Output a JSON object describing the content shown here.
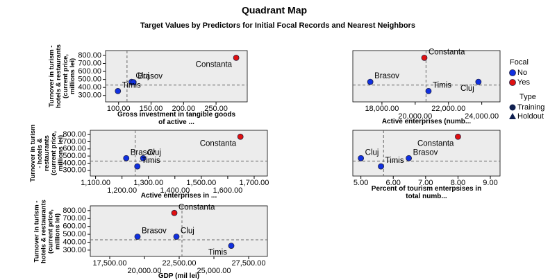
{
  "title": "Quadrant Map",
  "subtitle": "Target Values by Predictors for Initial Focal Records and Nearest Neighbors",
  "legend": {
    "title": "Focal",
    "items": [
      {
        "name": "No",
        "color": "#1030e0"
      },
      {
        "name": "Yes",
        "color": "#e01010"
      }
    ]
  },
  "type_legend": {
    "title": "Type",
    "items": [
      {
        "name": "Training",
        "shape": "circle"
      },
      {
        "name": "Holdout",
        "shape": "triangle"
      }
    ]
  },
  "chart_data": [
    {
      "type": "scatter",
      "xlabel": "Gross investment in tangible goods of active ...",
      "ylabel": "Turnover in turism - hotels & restaurants (current price, millions lei)",
      "labels": [
        "Constanta",
        "Cluj",
        "Brasov",
        "Timis"
      ],
      "focal": [
        "Yes",
        "No",
        "No",
        "No"
      ],
      "x": [
        281,
        120,
        123,
        99
      ],
      "values": [
        770,
        470,
        465,
        355
      ],
      "ref_x": 113,
      "ref_y": 430,
      "xlim": [
        80,
        298
      ],
      "ylim": [
        220,
        860
      ],
      "xticks": [
        {
          "value": 100,
          "label": "100.00"
        },
        {
          "value": 150,
          "label": "150.00"
        },
        {
          "value": 200,
          "label": "200.00"
        },
        {
          "value": 250,
          "label": "250.00"
        }
      ],
      "yticks": [
        {
          "value": 300,
          "label": "300.00"
        },
        {
          "value": 400,
          "label": "400.00"
        },
        {
          "value": 500,
          "label": "500.00"
        },
        {
          "value": 600,
          "label": "600.00"
        },
        {
          "value": 700,
          "label": "700.00"
        },
        {
          "value": 800,
          "label": "800.00"
        }
      ]
    },
    {
      "type": "scatter",
      "xlabel": "Active enterprises (numb...",
      "labels": [
        "Constanta",
        "Brasov",
        "Cluj",
        "Timis"
      ],
      "focal": [
        "Yes",
        "No",
        "No",
        "No"
      ],
      "x": [
        20550,
        17300,
        23800,
        20800
      ],
      "values": [
        770,
        470,
        470,
        355
      ],
      "ref_x": 20650,
      "ref_y": 430,
      "xlim": [
        16250,
        25100
      ],
      "ylim": [
        220,
        860
      ],
      "xticks": [
        {
          "value": 18000,
          "label": "18,000.00"
        },
        {
          "value": 20000,
          "label": "20,000.00"
        },
        {
          "value": 22000,
          "label": "22,000.00"
        },
        {
          "value": 24000,
          "label": "24,000.00"
        }
      ]
    },
    {
      "type": "scatter",
      "xlabel": "Active enterprises in ...",
      "ylabel": "Turnover in turism - hotels & restaurants (current price, millions lei)",
      "labels": [
        "Constanta",
        "Brasov",
        "Cluj",
        "Timis"
      ],
      "focal": [
        "Yes",
        "No",
        "No",
        "No"
      ],
      "x": [
        1648,
        1216,
        1280,
        1258
      ],
      "values": [
        770,
        470,
        470,
        355
      ],
      "ref_x": 1250,
      "ref_y": 430,
      "xlim": [
        1080,
        1750
      ],
      "ylim": [
        220,
        860
      ],
      "xticks": [
        {
          "value": 1100,
          "label": "1,100.00"
        },
        {
          "value": 1200,
          "label": "1,200.00"
        },
        {
          "value": 1300,
          "label": "1,300.00"
        },
        {
          "value": 1400,
          "label": "1,400.00"
        },
        {
          "value": 1500,
          "label": "1,500.00"
        },
        {
          "value": 1600,
          "label": "1,600.00"
        },
        {
          "value": 1700,
          "label": "1,700.00"
        }
      ],
      "yticks": [
        {
          "value": 300,
          "label": "300.00"
        },
        {
          "value": 400,
          "label": "400.00"
        },
        {
          "value": 500,
          "label": "500.00"
        },
        {
          "value": 600,
          "label": "600.00"
        },
        {
          "value": 700,
          "label": "700.00"
        },
        {
          "value": 800,
          "label": "800.00"
        }
      ]
    },
    {
      "type": "scatter",
      "xlabel": "Percent of tourism enterpsises in total numb...",
      "labels": [
        "Constanta",
        "Cluj",
        "Brasov",
        "Timis"
      ],
      "focal": [
        "Yes",
        "No",
        "No",
        "No"
      ],
      "x": [
        8.0,
        5.0,
        6.48,
        5.62
      ],
      "values": [
        770,
        470,
        470,
        355
      ],
      "ref_x": 5.7,
      "ref_y": 430,
      "xlim": [
        4.75,
        9.3
      ],
      "ylim": [
        220,
        860
      ],
      "xticks": [
        {
          "value": 5,
          "label": "5.00"
        },
        {
          "value": 6,
          "label": "6.00"
        },
        {
          "value": 7,
          "label": "7.00"
        },
        {
          "value": 8,
          "label": "8.00"
        },
        {
          "value": 9,
          "label": "9.00"
        }
      ]
    },
    {
      "type": "scatter",
      "xlabel": "GDP (mil lei)",
      "ylabel": "Turnover in turism - hotels & restaurants (current price, millions lei)",
      "labels": [
        "Constanta",
        "Brasov",
        "Cluj",
        "Timis"
      ],
      "focal": [
        "Yes",
        "No",
        "No",
        "No"
      ],
      "x": [
        22150,
        19500,
        22300,
        26250
      ],
      "values": [
        770,
        470,
        470,
        355
      ],
      "ref_x": 22700,
      "ref_y": 430,
      "xlim": [
        16100,
        28850
      ],
      "ylim": [
        220,
        860
      ],
      "xticks": [
        {
          "value": 17500,
          "label": "17,500.00"
        },
        {
          "value": 20000,
          "label": "20,000.00"
        },
        {
          "value": 22500,
          "label": "22,500.00"
        },
        {
          "value": 25000,
          "label": "25,000.00"
        },
        {
          "value": 27500,
          "label": "27,500.00"
        }
      ],
      "yticks": [
        {
          "value": 300,
          "label": "300.00"
        },
        {
          "value": 400,
          "label": "400.00"
        },
        {
          "value": 500,
          "label": "500.00"
        },
        {
          "value": 600,
          "label": "600.00"
        },
        {
          "value": 700,
          "label": "700.00"
        },
        {
          "value": 800,
          "label": "800.00"
        }
      ]
    }
  ]
}
